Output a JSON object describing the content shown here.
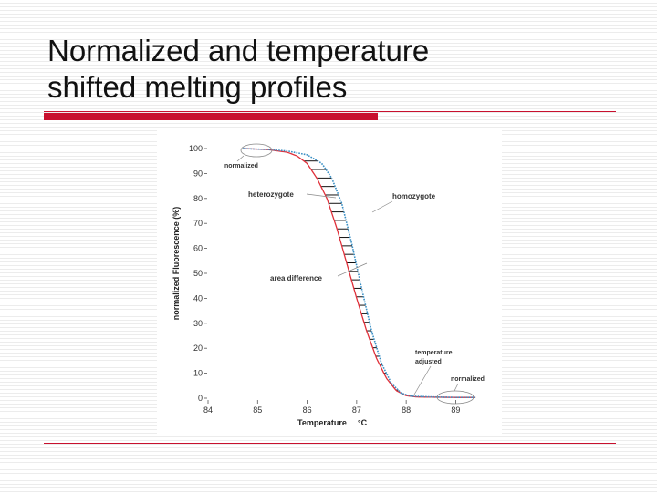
{
  "slide": {
    "title_line1": "Normalized and temperature",
    "title_line2": "shifted melting profiles"
  },
  "colors": {
    "accent_red": "#c8102e",
    "homozygote_curve": "#3a8fc4",
    "heterozygote_curve": "#e0303a"
  },
  "chart_data": {
    "type": "line",
    "xlabel": "Temperature",
    "xlabel_unit": "°C",
    "ylabel": "normalized Fluorescence (%)",
    "xlim": [
      84,
      89.6
    ],
    "ylim": [
      0,
      100
    ],
    "x_ticks": [
      "84",
      "85",
      "86",
      "87",
      "88",
      "89"
    ],
    "y_ticks": [
      "0",
      "10",
      "20",
      "30",
      "40",
      "50",
      "60",
      "70",
      "80",
      "90",
      "100"
    ],
    "series": [
      {
        "name": "homozygote",
        "color": "#3a8fc4",
        "style": "dotted",
        "x": [
          84.7,
          85.2,
          85.6,
          86.0,
          86.3,
          86.5,
          86.7,
          86.9,
          87.1,
          87.3,
          87.5,
          87.7,
          87.9,
          88.1,
          88.5,
          89.0,
          89.4
        ],
        "y": [
          100,
          99.6,
          99,
          97.5,
          94,
          88,
          78,
          62,
          44,
          27,
          14,
          6,
          2,
          0.8,
          0.5,
          0.3,
          0.3
        ]
      },
      {
        "name": "heterozygote",
        "color": "#e0303a",
        "style": "solid",
        "x": [
          84.7,
          85.2,
          85.6,
          85.8,
          86.0,
          86.2,
          86.4,
          86.6,
          86.8,
          87.0,
          87.2,
          87.4,
          87.6,
          87.8,
          88.0,
          88.2,
          88.5,
          89.0,
          89.4
        ],
        "y": [
          100,
          99.6,
          98.5,
          97,
          94,
          88,
          80,
          68,
          54,
          40,
          27,
          16,
          8,
          3,
          1,
          0.5,
          0.4,
          0.3,
          0.3
        ]
      }
    ],
    "annotations": {
      "normalized_top": "normalized",
      "heterozygote": "heterozygote",
      "homozygote": "homozygote",
      "area_difference": "area difference",
      "temperature_adjusted_line1": "temperature",
      "temperature_adjusted_line2": "adjusted",
      "normalized_bottom": "normalized"
    }
  }
}
